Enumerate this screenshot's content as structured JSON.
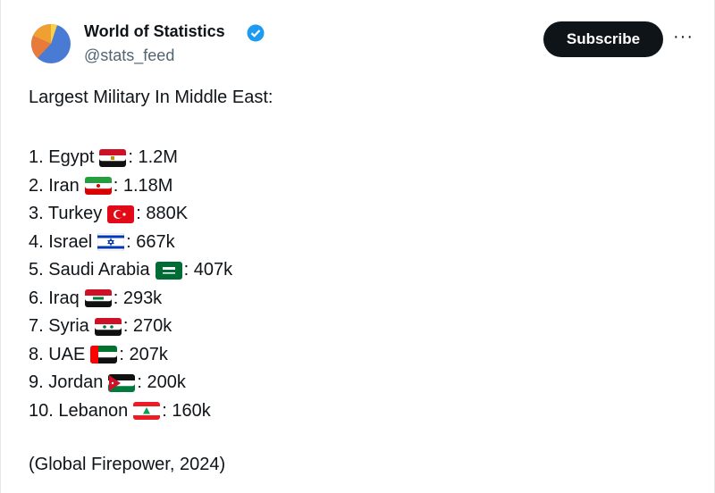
{
  "header": {
    "name": "World of Statistics",
    "handle": "@stats_feed",
    "button": "Subscribe",
    "more": "···"
  },
  "post": {
    "title": "Largest Military In Middle East:",
    "items": [
      {
        "name": "1. Egypt",
        "figure": ": 1.2M"
      },
      {
        "name": "2. Iran",
        "figure": ": 1.18M"
      },
      {
        "name": "3. Turkey",
        "figure": ": 880K"
      },
      {
        "name": "4. Israel",
        "figure": ": 667k"
      },
      {
        "name": "5. Saudi Arabia",
        "figure": ": 407k"
      },
      {
        "name": "6. Iraq",
        "figure": ": 293k"
      },
      {
        "name": "7. Syria",
        "figure": ": 270k"
      },
      {
        "name": "8. UAE",
        "figure": ": 207k"
      },
      {
        "name": "9. Jordan",
        "figure": ": 200k"
      },
      {
        "name": "10. Lebanon",
        "figure": ": 160k"
      }
    ],
    "source": "(Global Firepower, 2024)"
  }
}
